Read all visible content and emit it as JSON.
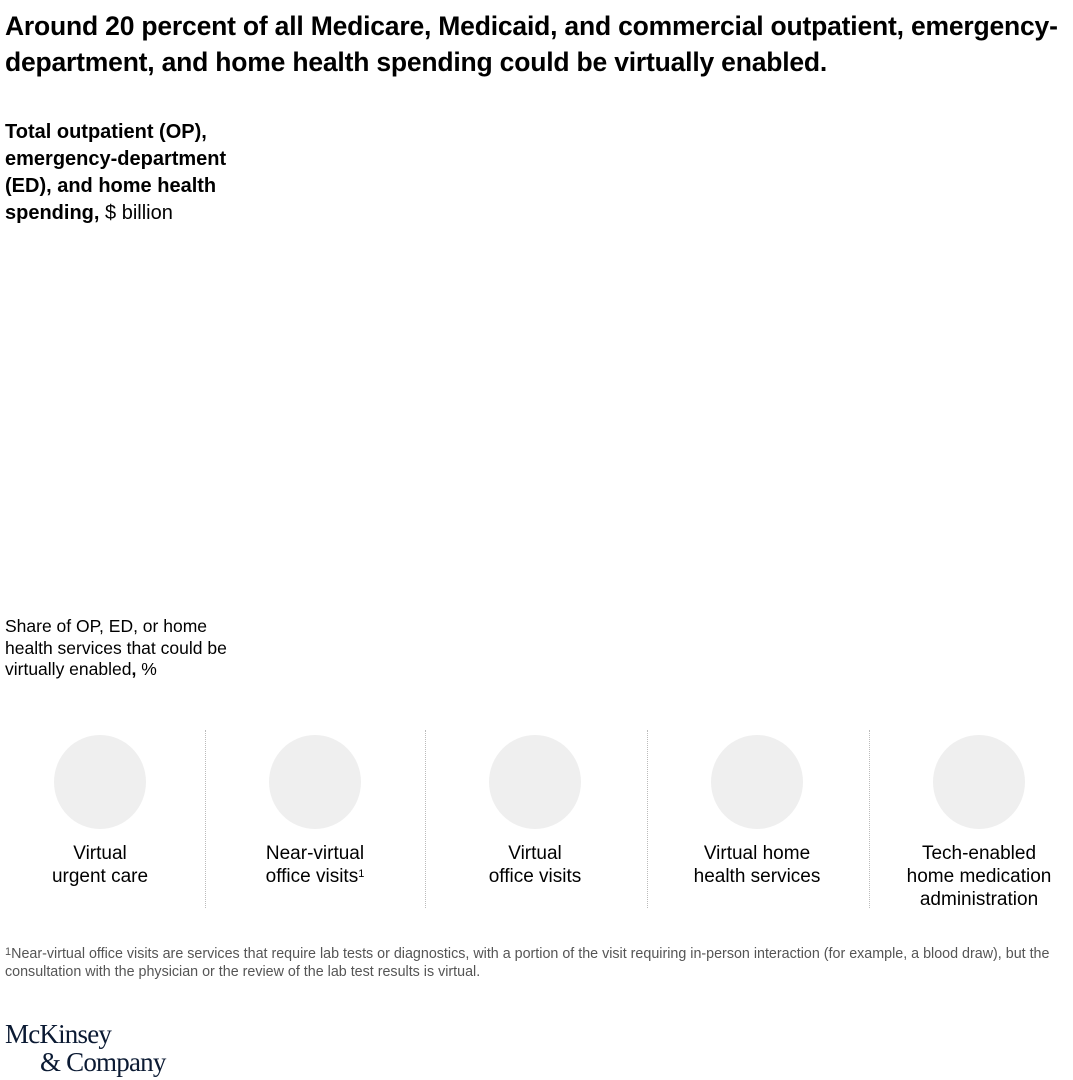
{
  "title": "Around 20 percent of all Medicare, Medicaid, and commercial outpatient, emergency-department, and home health spending could be virtually enabled.",
  "spending_panel": {
    "label": "Total outpatient (OP), emergency-department (ED), and home health spending,",
    "unit": "$ billion"
  },
  "share_panel": {
    "label": "Share of OP, ED, or home health services that could be virtually enabled",
    "separator": ",",
    "unit": "%"
  },
  "categories": [
    {
      "lines": [
        "Virtual",
        "urgent care"
      ]
    },
    {
      "lines": [
        "Near-virtual",
        "office visits"
      ],
      "note": "1"
    },
    {
      "lines": [
        "Virtual",
        "office visits"
      ]
    },
    {
      "lines": [
        "Virtual home",
        "health services"
      ]
    },
    {
      "lines": [
        "Tech-enabled",
        "home medication",
        "administration"
      ]
    }
  ],
  "footnote": {
    "marker": "1",
    "text": "Near-virtual office visits are services that require lab tests or diagnostics, with a portion of the visit requiring in-person interaction (for example, a blood draw), but the consultation with the physician or the review of the lab test results is virtual."
  },
  "logo": {
    "line1": "McKinsey",
    "line2": "& Company"
  }
}
